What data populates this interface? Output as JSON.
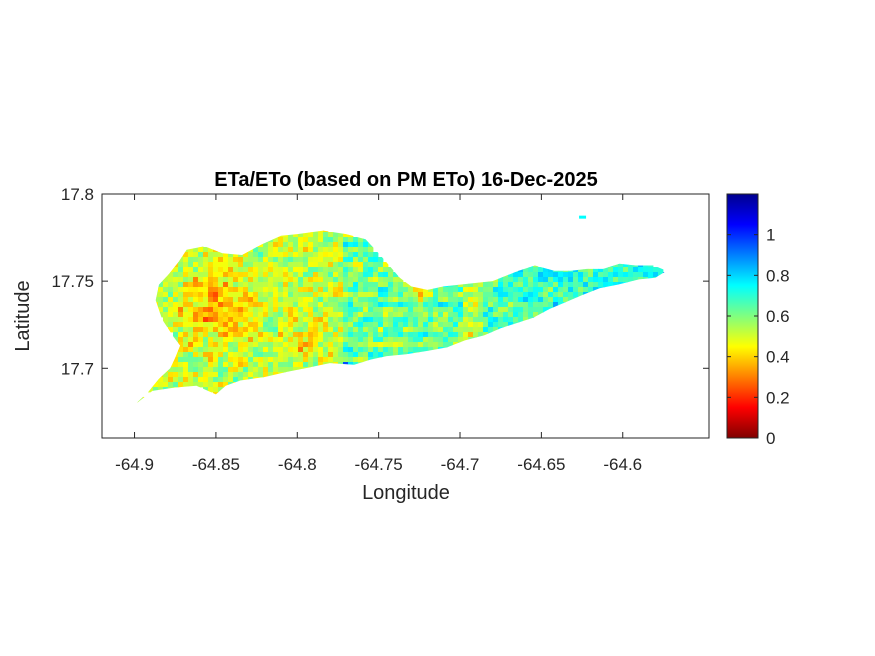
{
  "chart_data": {
    "type": "heatmap",
    "title": "ETa/ETo (based on PM ETo) 16-Dec-2025",
    "xlabel": "Longitude",
    "ylabel": "Latitude",
    "xlim": [
      -64.92,
      -64.547
    ],
    "ylim": [
      17.66,
      17.8
    ],
    "xticks": [
      -64.9,
      -64.85,
      -64.8,
      -64.75,
      -64.7,
      -64.65,
      -64.6
    ],
    "xtick_labels": [
      "-64.9",
      "-64.85",
      "-64.8",
      "-64.75",
      "-64.7",
      "-64.65",
      "-64.6"
    ],
    "yticks": [
      17.7,
      17.75,
      17.8
    ],
    "ytick_labels": [
      "17.7",
      "17.75",
      "17.8"
    ],
    "colorbar": {
      "colormap": "jet",
      "range": [
        0,
        1.2
      ],
      "ticks": [
        0,
        0.2,
        0.4,
        0.6,
        0.8,
        1
      ],
      "tick_labels": [
        "0",
        "0.2",
        "0.4",
        "0.6",
        "0.8",
        "1"
      ]
    },
    "region_outline_lonlat": [
      [
        -64.9,
        17.679
      ],
      [
        -64.892,
        17.686
      ],
      [
        -64.885,
        17.694
      ],
      [
        -64.878,
        17.7
      ],
      [
        -64.875,
        17.706
      ],
      [
        -64.872,
        17.713
      ],
      [
        -64.876,
        17.718
      ],
      [
        -64.883,
        17.728
      ],
      [
        -64.887,
        17.739
      ],
      [
        -64.885,
        17.748
      ],
      [
        -64.879,
        17.754
      ],
      [
        -64.873,
        17.761
      ],
      [
        -64.868,
        17.768
      ],
      [
        -64.857,
        17.77
      ],
      [
        -64.846,
        17.766
      ],
      [
        -64.834,
        17.765
      ],
      [
        -64.822,
        17.771
      ],
      [
        -64.81,
        17.776
      ],
      [
        -64.8,
        17.777
      ],
      [
        -64.784,
        17.779
      ],
      [
        -64.77,
        17.777
      ],
      [
        -64.758,
        17.774
      ],
      [
        -64.75,
        17.766
      ],
      [
        -64.737,
        17.752
      ],
      [
        -64.73,
        17.747
      ],
      [
        -64.72,
        17.745
      ],
      [
        -64.71,
        17.747
      ],
      [
        -64.7,
        17.748
      ],
      [
        -64.69,
        17.749
      ],
      [
        -64.68,
        17.75
      ],
      [
        -64.672,
        17.753
      ],
      [
        -64.664,
        17.756
      ],
      [
        -64.654,
        17.759
      ],
      [
        -64.642,
        17.756
      ],
      [
        -64.632,
        17.756
      ],
      [
        -64.622,
        17.757
      ],
      [
        -64.612,
        17.757
      ],
      [
        -64.602,
        17.76
      ],
      [
        -64.592,
        17.759
      ],
      [
        -64.581,
        17.759
      ],
      [
        -64.573,
        17.756
      ],
      [
        -64.58,
        17.752
      ],
      [
        -64.59,
        17.751
      ],
      [
        -64.603,
        17.748
      ],
      [
        -64.614,
        17.746
      ],
      [
        -64.625,
        17.742
      ],
      [
        -64.635,
        17.738
      ],
      [
        -64.645,
        17.734
      ],
      [
        -64.655,
        17.729
      ],
      [
        -64.665,
        17.726
      ],
      [
        -64.675,
        17.723
      ],
      [
        -64.685,
        17.719
      ],
      [
        -64.697,
        17.716
      ],
      [
        -64.708,
        17.712
      ],
      [
        -64.72,
        17.71
      ],
      [
        -64.733,
        17.708
      ],
      [
        -64.745,
        17.707
      ],
      [
        -64.755,
        17.705
      ],
      [
        -64.765,
        17.702
      ],
      [
        -64.78,
        17.703
      ],
      [
        -64.795,
        17.7
      ],
      [
        -64.806,
        17.698
      ],
      [
        -64.82,
        17.695
      ],
      [
        -64.835,
        17.693
      ],
      [
        -64.844,
        17.69
      ],
      [
        -64.85,
        17.685
      ],
      [
        -64.862,
        17.69
      ],
      [
        -64.875,
        17.689
      ],
      [
        -64.889,
        17.687
      ]
    ]
  }
}
